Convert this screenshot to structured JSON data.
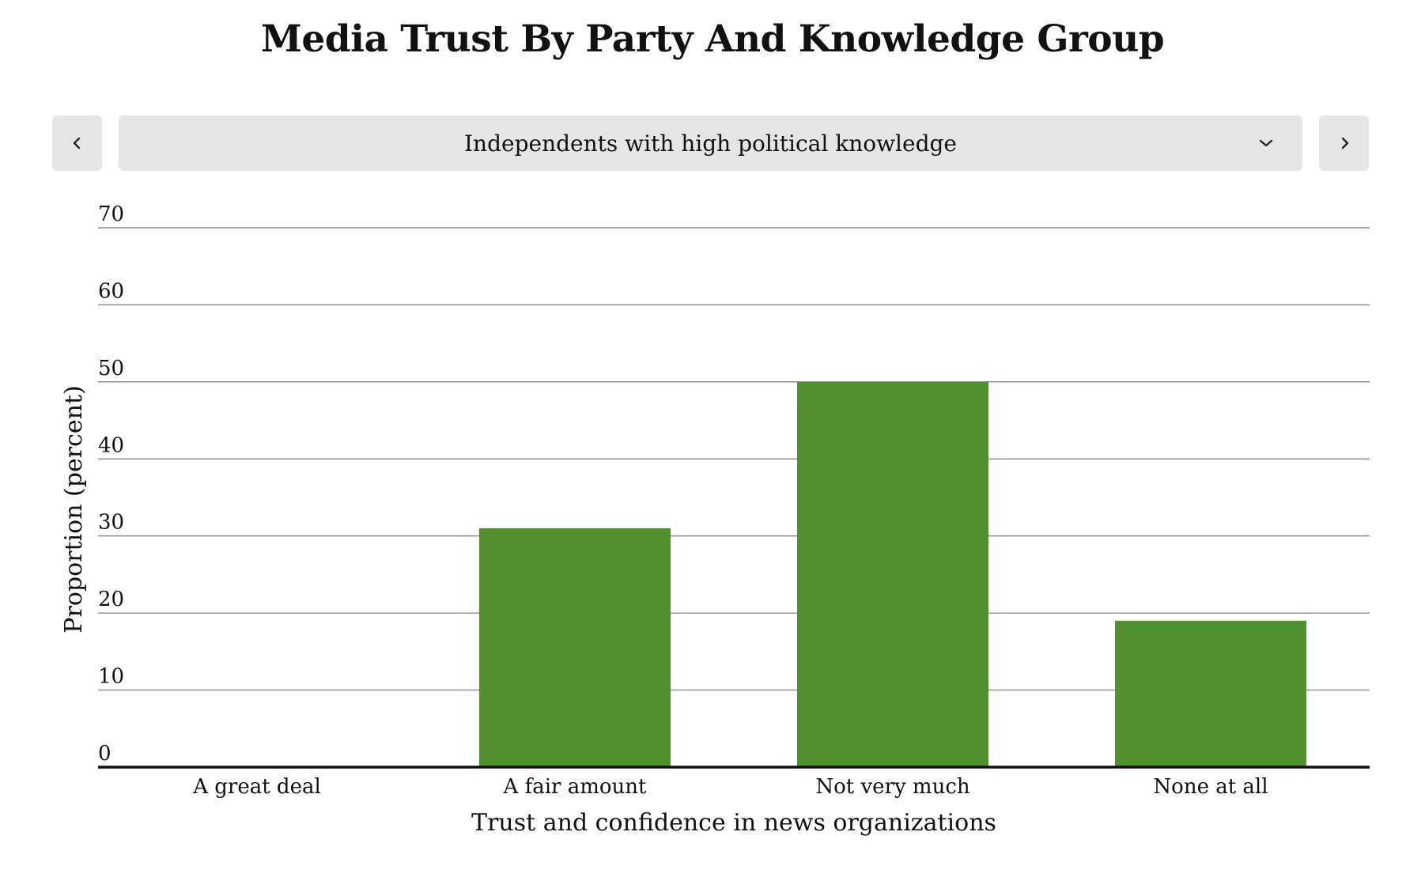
{
  "page": {
    "title": "Media Trust By Party And Knowledge Group"
  },
  "selector": {
    "selected": "Independents with high political knowledge",
    "prev_icon": "chevron-left-icon",
    "next_icon": "chevron-right-icon",
    "dropdown_icon": "chevron-down-icon"
  },
  "colors": {
    "bar": "#51912e",
    "grid": "#888888",
    "axis": "#111111",
    "button_bg": "#e5e5e5"
  },
  "chart_data": {
    "type": "bar",
    "title": "Media Trust By Party And Knowledge Group",
    "xlabel": "Trust and confidence in news organizations",
    "ylabel": "Proportion (percent)",
    "categories": [
      "A great deal",
      "A fair amount",
      "Not very much",
      "None at all"
    ],
    "values": [
      0,
      31,
      50,
      19
    ],
    "ylim": [
      0,
      70
    ],
    "yticks": [
      "0",
      "10",
      "20",
      "30",
      "40",
      "50",
      "60",
      "70"
    ],
    "grid": true,
    "legend": "none"
  }
}
